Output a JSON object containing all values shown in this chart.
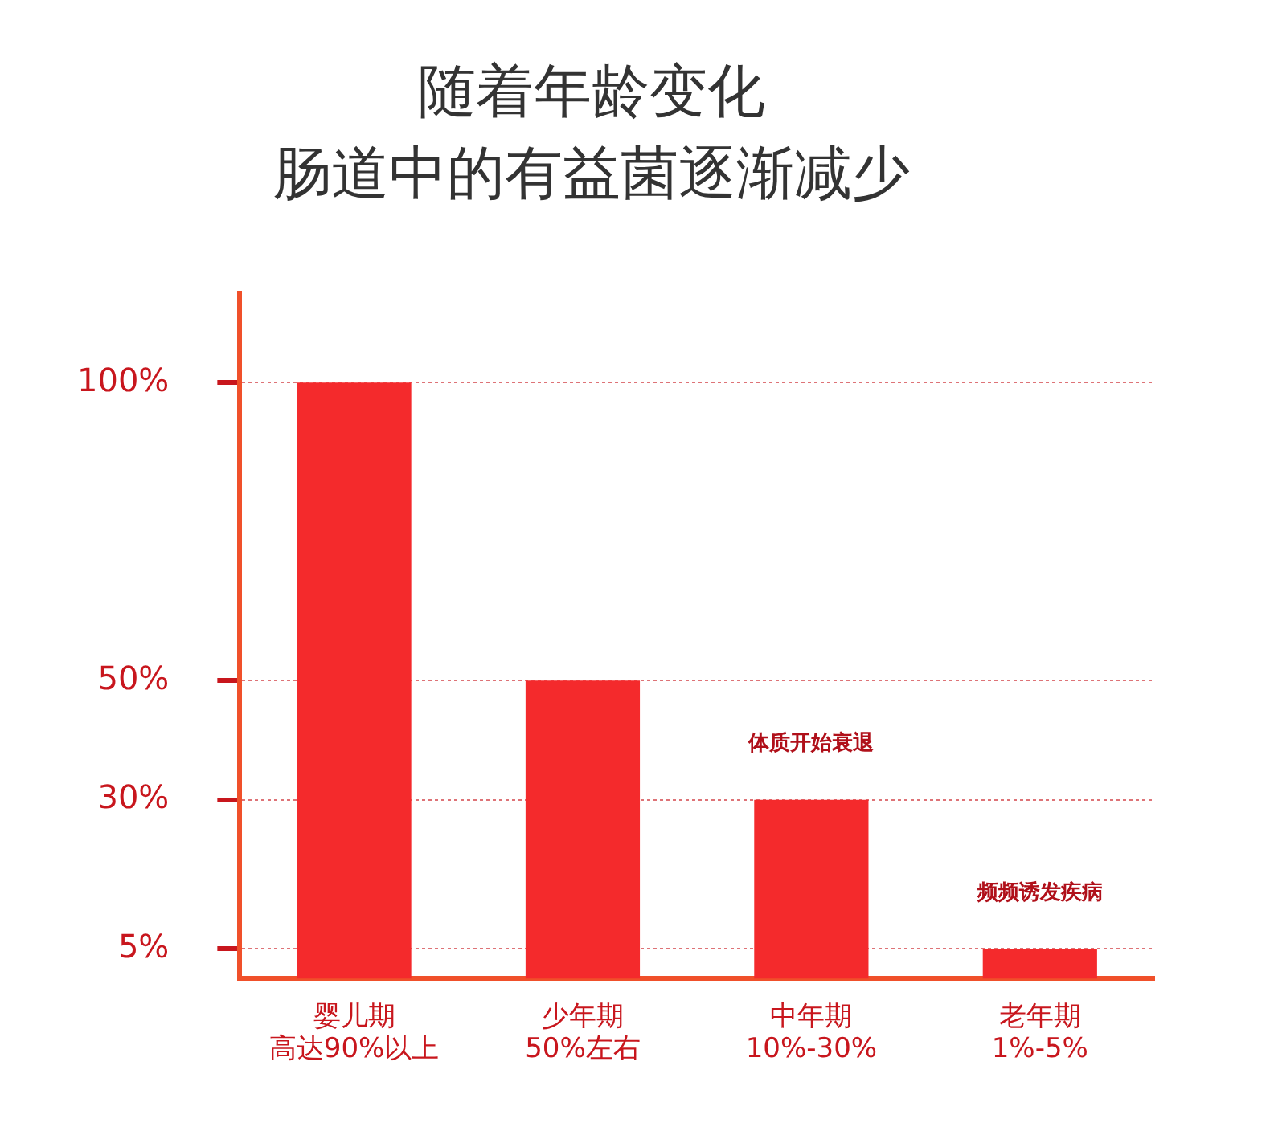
{
  "chart_data": {
    "type": "bar",
    "title": "随着年龄变化",
    "subtitle": "肠道中的有益菌逐渐减少",
    "categories": [
      "婴儿期",
      "少年期",
      "中年期",
      "老年期"
    ],
    "values": [
      100,
      50,
      30,
      5
    ],
    "color": "#f42a2c",
    "ylim": [
      0,
      115
    ],
    "yticks": [
      {
        "value": 5,
        "label": "5%"
      },
      {
        "value": 30,
        "label": "30%"
      },
      {
        "value": 50,
        "label": "50%"
      },
      {
        "value": 100,
        "label": "100%"
      }
    ],
    "grid": "y",
    "annotations": [
      "高达90%以上",
      "50%左右",
      "10%-30%",
      "1%-5%",
      {
        "text": "体质开始衰退",
        "x": "中年期",
        "y": 30
      },
      {
        "text": "频频诱发疾病",
        "x": "老年期",
        "y": 5
      }
    ]
  }
}
